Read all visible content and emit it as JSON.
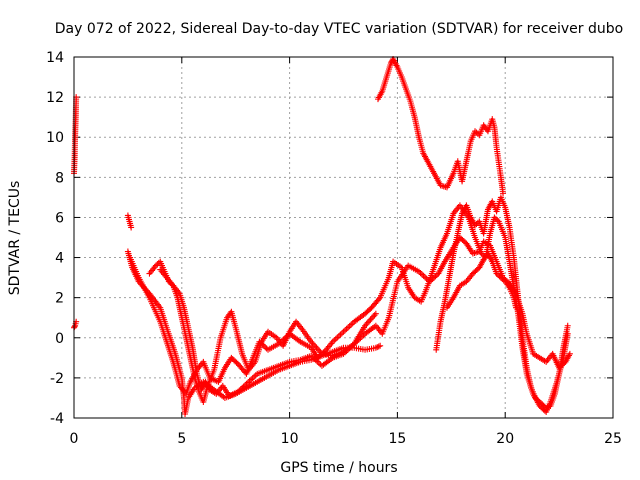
{
  "chart_data": {
    "type": "scatter",
    "title": "Day 072 of 2022, Sidereal Day-to-day VTEC variation (SDTVAR) for receiver dubo",
    "xlabel": "GPS time / hours",
    "ylabel": "SDTVAR / TECUs",
    "xlim": [
      0,
      25
    ],
    "ylim": [
      -4,
      14
    ],
    "xticks": [
      0,
      5,
      10,
      15,
      20,
      25
    ],
    "yticks": [
      -4,
      -2,
      0,
      2,
      4,
      6,
      8,
      10,
      12,
      14
    ],
    "grid": true,
    "marker": "+",
    "color": "#ff0000",
    "series": [
      {
        "points": [
          [
            0.0,
            0.5
          ],
          [
            0.05,
            0.6
          ],
          [
            0.1,
            0.8
          ]
        ]
      },
      {
        "points": [
          [
            0.0,
            8.2
          ],
          [
            0.03,
            9.0
          ],
          [
            0.05,
            10.0
          ],
          [
            0.08,
            11.0
          ],
          [
            0.1,
            12.0
          ]
        ]
      },
      {
        "points": [
          [
            2.5,
            6.1
          ],
          [
            2.55,
            5.9
          ],
          [
            2.6,
            5.7
          ],
          [
            2.65,
            5.5
          ]
        ]
      },
      {
        "points": [
          [
            2.5,
            4.3
          ],
          [
            2.7,
            3.5
          ],
          [
            3.0,
            2.8
          ],
          [
            3.5,
            2.2
          ],
          [
            4.0,
            1.5
          ],
          [
            4.3,
            0.5
          ],
          [
            4.7,
            -0.8
          ],
          [
            5.0,
            -2.0
          ],
          [
            5.1,
            -3.0
          ],
          [
            5.15,
            -3.8
          ],
          [
            5.3,
            -3.0
          ],
          [
            5.6,
            -2.5
          ],
          [
            6.0,
            -2.2
          ],
          [
            6.5,
            -2.6
          ],
          [
            7.0,
            -3.0
          ],
          [
            7.5,
            -2.8
          ],
          [
            8.0,
            -2.5
          ],
          [
            8.5,
            -2.2
          ],
          [
            9.0,
            -1.9
          ],
          [
            9.5,
            -1.6
          ],
          [
            10.0,
            -1.4
          ],
          [
            10.5,
            -1.2
          ],
          [
            11.0,
            -1.1
          ],
          [
            11.5,
            -0.9
          ],
          [
            12.0,
            -0.7
          ],
          [
            12.5,
            -0.5
          ],
          [
            13.0,
            -0.5
          ],
          [
            13.5,
            -0.6
          ],
          [
            14.0,
            -0.5
          ],
          [
            14.2,
            -0.4
          ]
        ]
      },
      {
        "points": [
          [
            2.6,
            4.0
          ],
          [
            3.0,
            3.0
          ],
          [
            3.5,
            2.0
          ],
          [
            4.0,
            0.8
          ],
          [
            4.3,
            -0.2
          ],
          [
            4.6,
            -1.2
          ],
          [
            4.9,
            -2.4
          ],
          [
            5.2,
            -2.8
          ],
          [
            5.4,
            -2.2
          ],
          [
            5.7,
            -1.6
          ],
          [
            6.0,
            -1.2
          ],
          [
            6.3,
            -2.0
          ],
          [
            6.7,
            -2.2
          ],
          [
            7.0,
            -1.5
          ],
          [
            7.3,
            -1.0
          ],
          [
            7.6,
            -1.3
          ],
          [
            8.0,
            -1.8
          ],
          [
            8.3,
            -1.0
          ],
          [
            8.6,
            -0.2
          ],
          [
            9.0,
            -0.6
          ],
          [
            9.5,
            -0.3
          ],
          [
            10.0,
            0.2
          ],
          [
            10.5,
            -0.2
          ],
          [
            11.0,
            -0.5
          ],
          [
            11.3,
            -1.0
          ],
          [
            11.7,
            -0.6
          ],
          [
            12.0,
            -0.2
          ],
          [
            12.5,
            0.3
          ],
          [
            13.0,
            0.8
          ],
          [
            13.5,
            1.2
          ],
          [
            13.8,
            1.5
          ],
          [
            14.2,
            2.0
          ],
          [
            14.6,
            3.0
          ],
          [
            14.8,
            3.8
          ],
          [
            15.2,
            3.5
          ],
          [
            15.5,
            2.5
          ],
          [
            15.8,
            2.0
          ],
          [
            16.1,
            1.8
          ],
          [
            16.3,
            2.3
          ],
          [
            16.6,
            3.2
          ],
          [
            17.0,
            4.5
          ],
          [
            17.3,
            5.2
          ],
          [
            17.6,
            6.2
          ],
          [
            17.9,
            6.6
          ],
          [
            18.3,
            6.0
          ],
          [
            18.6,
            5.0
          ],
          [
            18.9,
            4.2
          ],
          [
            19.1,
            4.0
          ],
          [
            19.3,
            5.2
          ],
          [
            19.5,
            6.0
          ],
          [
            19.7,
            5.8
          ],
          [
            20.0,
            5.0
          ],
          [
            20.2,
            3.8
          ],
          [
            20.4,
            2.5
          ],
          [
            20.6,
            1.2
          ],
          [
            20.8,
            -0.5
          ],
          [
            21.0,
            -1.8
          ],
          [
            21.3,
            -2.8
          ],
          [
            21.6,
            -3.4
          ],
          [
            21.9,
            -3.7
          ],
          [
            22.1,
            -3.2
          ],
          [
            22.4,
            -2.2
          ],
          [
            22.7,
            -1.0
          ],
          [
            22.9,
            0.2
          ]
        ]
      },
      {
        "points": [
          [
            3.5,
            3.2
          ],
          [
            3.8,
            3.6
          ],
          [
            4.0,
            3.8
          ],
          [
            4.2,
            3.3
          ],
          [
            4.4,
            2.8
          ],
          [
            4.6,
            2.6
          ],
          [
            4.8,
            2.0
          ],
          [
            5.0,
            1.0
          ],
          [
            5.2,
            0.0
          ],
          [
            5.4,
            -1.0
          ],
          [
            5.6,
            -2.0
          ],
          [
            5.8,
            -2.7
          ],
          [
            6.0,
            -3.2
          ],
          [
            6.2,
            -2.4
          ],
          [
            6.5,
            -1.6
          ],
          [
            6.8,
            0.0
          ],
          [
            7.1,
            1.0
          ],
          [
            7.3,
            1.3
          ],
          [
            7.5,
            0.5
          ],
          [
            7.8,
            -0.8
          ],
          [
            8.1,
            -1.6
          ],
          [
            8.4,
            -1.2
          ],
          [
            8.7,
            -0.2
          ],
          [
            9.0,
            0.3
          ],
          [
            9.4,
            0.0
          ],
          [
            9.7,
            -0.4
          ],
          [
            10.0,
            0.3
          ],
          [
            10.3,
            0.8
          ],
          [
            10.6,
            0.4
          ],
          [
            11.0,
            -0.2
          ],
          [
            11.5,
            -0.8
          ],
          [
            12.0,
            -0.9
          ],
          [
            12.5,
            -0.7
          ],
          [
            13.0,
            -0.3
          ],
          [
            13.5,
            0.2
          ],
          [
            14.0,
            0.6
          ],
          [
            14.3,
            0.2
          ],
          [
            14.6,
            1.0
          ],
          [
            15.0,
            2.8
          ],
          [
            15.5,
            3.6
          ],
          [
            16.0,
            3.3
          ],
          [
            16.5,
            2.8
          ],
          [
            16.9,
            3.2
          ],
          [
            17.2,
            3.8
          ],
          [
            17.6,
            4.5
          ],
          [
            17.9,
            5.0
          ],
          [
            18.2,
            4.7
          ],
          [
            18.5,
            4.2
          ],
          [
            18.8,
            4.3
          ],
          [
            19.0,
            4.8
          ],
          [
            19.3,
            4.6
          ],
          [
            19.6,
            3.8
          ],
          [
            19.9,
            3.0
          ],
          [
            20.2,
            2.7
          ],
          [
            20.5,
            2.2
          ],
          [
            20.8,
            1.2
          ],
          [
            21.0,
            0.2
          ],
          [
            21.3,
            -0.8
          ],
          [
            21.6,
            -1.0
          ],
          [
            21.9,
            -1.2
          ],
          [
            22.2,
            -0.8
          ],
          [
            22.5,
            -1.5
          ],
          [
            22.8,
            -1.2
          ],
          [
            23.0,
            -0.8
          ]
        ]
      },
      {
        "points": [
          [
            4.0,
            3.4
          ],
          [
            4.3,
            3.0
          ],
          [
            4.6,
            2.6
          ],
          [
            4.9,
            2.2
          ],
          [
            5.1,
            1.5
          ],
          [
            5.3,
            0.5
          ],
          [
            5.5,
            -0.5
          ],
          [
            5.7,
            -1.8
          ],
          [
            5.9,
            -2.6
          ],
          [
            6.1,
            -2.2
          ],
          [
            6.3,
            -2.6
          ],
          [
            6.6,
            -2.8
          ],
          [
            6.9,
            -2.4
          ],
          [
            7.2,
            -2.9
          ],
          [
            7.6,
            -2.7
          ],
          [
            8.0,
            -2.3
          ],
          [
            8.5,
            -1.8
          ],
          [
            9.0,
            -1.6
          ],
          [
            9.5,
            -1.4
          ],
          [
            10.0,
            -1.2
          ],
          [
            10.5,
            -1.1
          ],
          [
            11.0,
            -0.9
          ],
          [
            11.5,
            -1.4
          ],
          [
            12.0,
            -1.0
          ],
          [
            12.5,
            -0.8
          ],
          [
            13.0,
            -0.3
          ],
          [
            13.5,
            0.6
          ],
          [
            14.0,
            1.2
          ]
        ]
      },
      {
        "points": [
          [
            14.1,
            11.9
          ],
          [
            14.3,
            12.3
          ],
          [
            14.5,
            13.0
          ],
          [
            14.7,
            13.7
          ],
          [
            14.8,
            13.9
          ],
          [
            15.0,
            13.5
          ],
          [
            15.2,
            13.0
          ],
          [
            15.4,
            12.4
          ],
          [
            15.6,
            11.8
          ],
          [
            15.8,
            11.0
          ],
          [
            16.0,
            10.0
          ],
          [
            16.2,
            9.2
          ],
          [
            16.4,
            8.8
          ],
          [
            16.7,
            8.2
          ],
          [
            17.0,
            7.6
          ],
          [
            17.3,
            7.5
          ],
          [
            17.6,
            8.2
          ],
          [
            17.8,
            8.8
          ],
          [
            18.0,
            7.8
          ],
          [
            18.2,
            8.8
          ],
          [
            18.4,
            9.8
          ],
          [
            18.6,
            10.3
          ],
          [
            18.8,
            10.1
          ],
          [
            19.0,
            10.6
          ],
          [
            19.2,
            10.3
          ],
          [
            19.4,
            10.9
          ],
          [
            19.5,
            10.5
          ],
          [
            19.6,
            9.5
          ],
          [
            19.8,
            8.0
          ],
          [
            19.9,
            7.2
          ]
        ]
      },
      {
        "points": [
          [
            16.8,
            -0.6
          ],
          [
            17.0,
            0.8
          ],
          [
            17.2,
            1.8
          ],
          [
            17.4,
            3.0
          ],
          [
            17.6,
            4.2
          ],
          [
            17.8,
            5.2
          ],
          [
            18.0,
            6.2
          ],
          [
            18.2,
            6.6
          ],
          [
            18.4,
            6.0
          ],
          [
            18.6,
            5.6
          ],
          [
            18.8,
            5.8
          ],
          [
            19.0,
            5.2
          ],
          [
            19.2,
            6.4
          ],
          [
            19.4,
            6.8
          ],
          [
            19.6,
            6.3
          ],
          [
            19.8,
            7.0
          ],
          [
            20.0,
            6.5
          ],
          [
            20.2,
            5.5
          ],
          [
            20.4,
            4.0
          ],
          [
            20.6,
            2.0
          ],
          [
            20.8,
            0.0
          ],
          [
            21.0,
            -1.5
          ],
          [
            21.2,
            -2.5
          ],
          [
            21.4,
            -3.0
          ],
          [
            21.6,
            -3.2
          ],
          [
            21.9,
            -3.5
          ],
          [
            22.1,
            -3.4
          ],
          [
            22.3,
            -2.8
          ],
          [
            22.5,
            -1.8
          ],
          [
            22.7,
            -0.5
          ],
          [
            22.9,
            0.6
          ]
        ]
      },
      {
        "points": [
          [
            17.3,
            1.5
          ],
          [
            17.6,
            2.0
          ],
          [
            17.9,
            2.6
          ],
          [
            18.2,
            2.8
          ],
          [
            18.5,
            3.2
          ],
          [
            18.8,
            3.5
          ],
          [
            19.0,
            3.9
          ],
          [
            19.2,
            4.2
          ],
          [
            19.4,
            3.8
          ],
          [
            19.6,
            3.2
          ],
          [
            19.8,
            3.0
          ],
          [
            20.0,
            2.8
          ],
          [
            20.2,
            2.5
          ],
          [
            20.4,
            2.0
          ],
          [
            20.5,
            1.5
          ]
        ]
      }
    ]
  }
}
